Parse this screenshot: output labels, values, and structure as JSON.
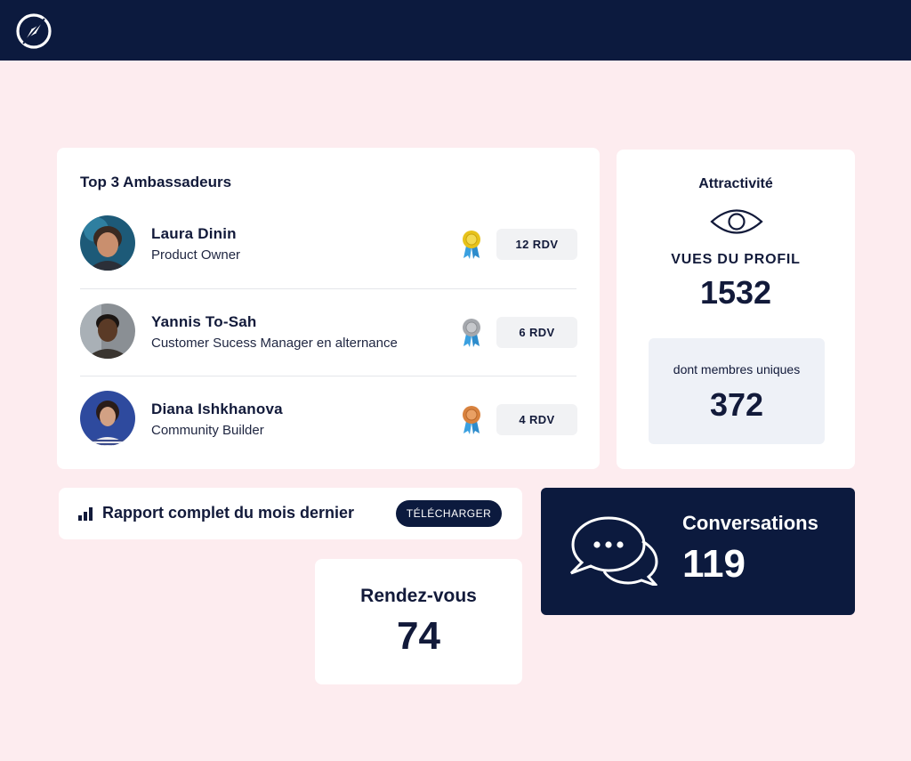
{
  "colors": {
    "navy": "#0c1a3e",
    "background": "#fdecef",
    "card": "#ffffff",
    "gold": "#e7c21a",
    "silver": "#a5a8ad",
    "bronze": "#d8823e",
    "ribbon": "#3aa0e0"
  },
  "header": {
    "logo_icon": "compass-icon"
  },
  "ambassadors": {
    "title": "Top 3 Ambassadeurs",
    "items": [
      {
        "name": "Laura Dinin",
        "role": "Product Owner",
        "medal": "gold-medal-icon",
        "rdv": "12 RDV"
      },
      {
        "name": "Yannis To-Sah",
        "role": "Customer Sucess Manager en alternance",
        "medal": "silver-medal-icon",
        "rdv": "6 RDV"
      },
      {
        "name": "Diana Ishkhanova",
        "role": "Community Builder",
        "medal": "bronze-medal-icon",
        "rdv": "4 RDV"
      }
    ]
  },
  "attractivite": {
    "title": "Attractivité",
    "icon": "eye-icon",
    "views_label": "VUES DU PROFIL",
    "views_value": "1532",
    "unique_label": "dont membres uniques",
    "unique_value": "372"
  },
  "report": {
    "icon": "bar-chart-icon",
    "label": "Rapport complet du mois dernier",
    "button": "TÉLÉCHARGER"
  },
  "conversations": {
    "icon": "chat-bubbles-icon",
    "label": "Conversations",
    "value": "119"
  },
  "rendezvous": {
    "label": "Rendez-vous",
    "value": "74"
  }
}
